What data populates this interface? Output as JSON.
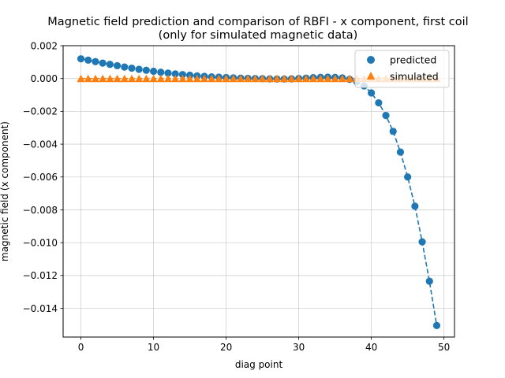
{
  "chart_data": {
    "type": "scatter",
    "title": "Magnetic field prediction and comparison of RBFI - x component, first coil",
    "subtitle": "(only for simulated magnetic data)",
    "xlabel": "diag point",
    "ylabel": "magnetic field (x component)",
    "xlim": [
      -2.45,
      51.45
    ],
    "ylim": [
      -0.01575,
      0.002
    ],
    "xticks": [
      0,
      10,
      20,
      30,
      40,
      50
    ],
    "yticks": [
      -0.014,
      -0.012,
      -0.01,
      -0.008,
      -0.006,
      -0.004,
      -0.002,
      0.0,
      0.002
    ],
    "xtick_labels": [
      "0",
      "10",
      "20",
      "30",
      "40",
      "50"
    ],
    "ytick_labels": [
      "−0.014",
      "−0.012",
      "−0.010",
      "−0.008",
      "−0.006",
      "−0.004",
      "−0.002",
      "0.000",
      "0.002"
    ],
    "grid": true,
    "legend_position": "top-right",
    "x": [
      0,
      1,
      2,
      3,
      4,
      5,
      6,
      7,
      8,
      9,
      10,
      11,
      12,
      13,
      14,
      15,
      16,
      17,
      18,
      19,
      20,
      21,
      22,
      23,
      24,
      25,
      26,
      27,
      28,
      29,
      30,
      31,
      32,
      33,
      34,
      35,
      36,
      37,
      38,
      39,
      40,
      41,
      42,
      43,
      44,
      45,
      46,
      47,
      48,
      49
    ],
    "series": [
      {
        "name": "predicted",
        "marker": "circle",
        "color": "#1f77b4",
        "dashed_line": true,
        "values": [
          0.0012,
          0.00112,
          0.00103,
          0.00094,
          0.00086,
          0.00078,
          0.0007,
          0.00063,
          0.00056,
          0.0005,
          0.00044,
          0.00038,
          0.00033,
          0.00028,
          0.00024,
          0.0002,
          0.00016,
          0.00013,
          0.0001,
          8e-05,
          6e-05,
          4e-05,
          2e-05,
          1e-05,
          0.0,
          -1e-05,
          -2e-05,
          -3e-05,
          -3e-05,
          -2e-05,
          0.0,
          2e-05,
          5e-05,
          7e-05,
          8e-05,
          7e-05,
          4e-05,
          -5e-05,
          -0.0002,
          -0.00045,
          -0.00088,
          -0.00148,
          -0.00225,
          -0.00322,
          -0.00448,
          -0.006,
          -0.00778,
          -0.00995,
          -0.01235,
          -0.01505
        ]
      },
      {
        "name": "simulated",
        "marker": "triangle",
        "color": "#ff7f0e",
        "dashed_line": true,
        "values": [
          0,
          0,
          0,
          0,
          0,
          0,
          0,
          0,
          0,
          0,
          0,
          0,
          0,
          0,
          0,
          0,
          0,
          0,
          0,
          0,
          0,
          0,
          0,
          0,
          0,
          0,
          0,
          0,
          0,
          0,
          0,
          0,
          0,
          0,
          0,
          0,
          0,
          0,
          0,
          0,
          0,
          0,
          0,
          0,
          0,
          0,
          0,
          0,
          0,
          0
        ]
      }
    ]
  }
}
